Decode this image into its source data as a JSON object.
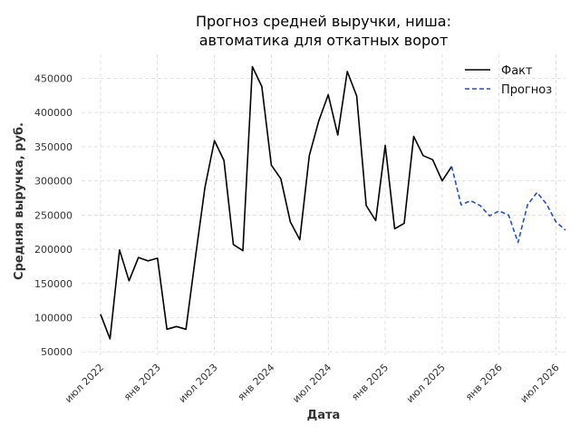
{
  "chart_data": {
    "type": "line",
    "title_lines": [
      "Прогноз средней выручки, ниша:",
      "автоматика для откатных ворот"
    ],
    "xlabel": "Дата",
    "ylabel": "Средняя выручка, руб.",
    "x_ticks": [
      "июл 2022",
      "янв 2023",
      "июл 2023",
      "янв 2024",
      "июл 2024",
      "янв 2025",
      "июл 2025",
      "янв 2026",
      "июл 2026"
    ],
    "y_ticks": [
      50000,
      100000,
      150000,
      200000,
      250000,
      300000,
      350000,
      400000,
      450000
    ],
    "y_tick_labels": [
      "50000",
      "100000",
      "150000",
      "200000",
      "250000",
      "300000",
      "350000",
      "400000",
      "450000"
    ],
    "ylim": [
      45000,
      485000
    ],
    "xlim": [
      "2022-05",
      "2026-08"
    ],
    "grid": true,
    "legend_position": "top-right",
    "series": [
      {
        "name": "Факт",
        "color": "#000000",
        "style": "solid",
        "x": [
          "2022-07",
          "2022-08",
          "2022-09",
          "2022-10",
          "2022-11",
          "2022-12",
          "2023-01",
          "2023-02",
          "2023-03",
          "2023-04",
          "2023-05",
          "2023-06",
          "2023-07",
          "2023-08",
          "2023-09",
          "2023-10",
          "2023-11",
          "2023-12",
          "2024-01",
          "2024-02",
          "2024-03",
          "2024-04",
          "2024-05",
          "2024-06",
          "2024-07",
          "2024-08",
          "2024-09",
          "2024-10",
          "2024-11",
          "2024-12",
          "2025-01",
          "2025-02",
          "2025-03",
          "2025-04",
          "2025-05",
          "2025-06",
          "2025-07",
          "2025-08"
        ],
        "y": [
          105000,
          69000,
          199000,
          154000,
          188000,
          183000,
          187000,
          83000,
          87000,
          83000,
          188000,
          290000,
          359000,
          330000,
          207000,
          198000,
          467000,
          438000,
          323000,
          303000,
          240000,
          214000,
          337000,
          388000,
          426000,
          367000,
          460000,
          424000,
          264000,
          242000,
          352000,
          230000,
          238000,
          365000,
          337000,
          331000,
          300000,
          321000
        ]
      },
      {
        "name": "Прогноз",
        "color": "#1f4fd1",
        "style": "dashed",
        "x": [
          "2025-08",
          "2025-09",
          "2025-10",
          "2025-11",
          "2025-12",
          "2026-01",
          "2026-02",
          "2026-03",
          "2026-04",
          "2026-05",
          "2026-06",
          "2026-07",
          "2026-08"
        ],
        "y": [
          321000,
          265000,
          271000,
          264000,
          249000,
          256000,
          250000,
          210000,
          265000,
          283000,
          266000,
          240000,
          228000
        ]
      }
    ]
  }
}
